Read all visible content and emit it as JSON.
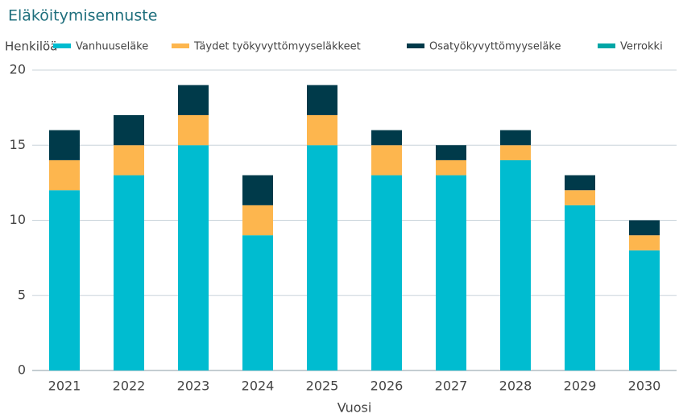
{
  "chart_data": {
    "type": "stacked_bar",
    "title": "Eläköitymisennuste",
    "y_label": "Henkilöä",
    "x_label": "Vuosi",
    "categories": [
      "2021",
      "2022",
      "2023",
      "2024",
      "2025",
      "2026",
      "2027",
      "2028",
      "2029",
      "2030"
    ],
    "series": [
      {
        "name": "Vanhuuseläke",
        "color": "#00bcd0",
        "values": [
          12,
          13,
          15,
          9,
          15,
          13,
          13,
          14,
          11,
          8
        ]
      },
      {
        "name": "Täydet työkyvyttömyyseläkkeet",
        "color": "#fdb64e",
        "values": [
          2,
          2,
          2,
          2,
          2,
          2,
          1,
          1,
          1,
          1
        ]
      },
      {
        "name": "Osatyökyvyttömyyseläke",
        "color": "#003a4a",
        "values": [
          2,
          2,
          2,
          2,
          2,
          1,
          1,
          1,
          1,
          1
        ]
      },
      {
        "name": "Verrokki",
        "color": "#00a6a6",
        "values": [
          null,
          null,
          null,
          null,
          null,
          null,
          null,
          null,
          null,
          null
        ]
      }
    ],
    "ylim": [
      0,
      20
    ],
    "yticks": [
      0,
      5,
      10,
      15,
      20
    ],
    "grid": true
  }
}
